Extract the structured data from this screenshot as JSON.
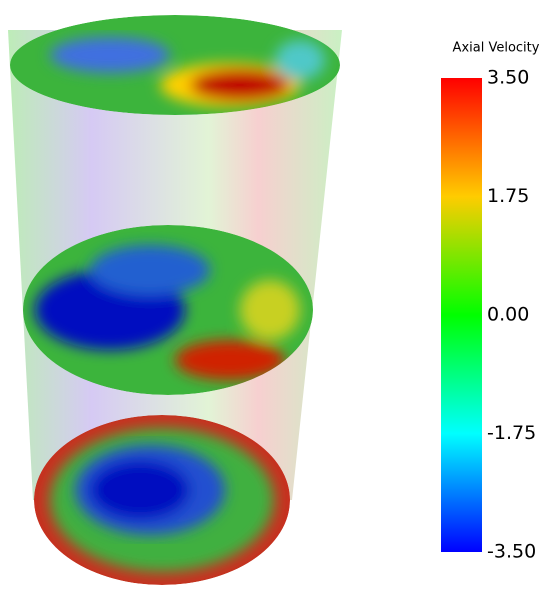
{
  "colorbar": {
    "title": "Axial Velocity",
    "range": [
      -3.5,
      3.5
    ],
    "ticks": [
      {
        "value": 3.5,
        "label": "3.50"
      },
      {
        "value": 1.75,
        "label": "1.75"
      },
      {
        "value": 0,
        "label": "0.00"
      },
      {
        "value": -1.75,
        "label": "-1.75"
      },
      {
        "value": -3.5,
        "label": "-3.50"
      }
    ]
  }
}
